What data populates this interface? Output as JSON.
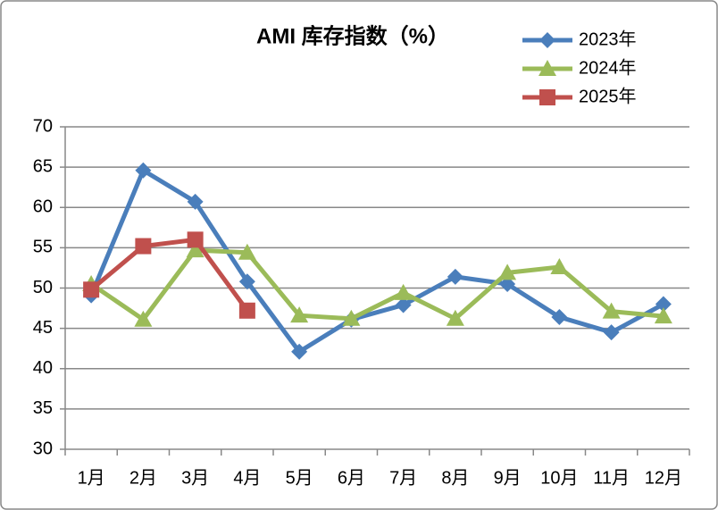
{
  "chart_data": {
    "type": "line",
    "title": "AMI 库存指数（%）",
    "categories": [
      "1月",
      "2月",
      "3月",
      "4月",
      "5月",
      "6月",
      "7月",
      "8月",
      "9月",
      "10月",
      "11月",
      "12月"
    ],
    "series": [
      {
        "name": "2023年",
        "color": "#4a7ebb",
        "marker": "diamond",
        "values": [
          49.1,
          64.6,
          60.7,
          50.8,
          42.1,
          46.1,
          47.9,
          51.4,
          50.5,
          46.4,
          44.5,
          48.0
        ]
      },
      {
        "name": "2024年",
        "color": "#9bbb59",
        "marker": "triangle",
        "values": [
          50.5,
          46.1,
          54.7,
          54.4,
          46.6,
          46.2,
          49.4,
          46.2,
          51.9,
          52.6,
          47.1,
          46.5
        ]
      },
      {
        "name": "2025年",
        "color": "#c0504d",
        "marker": "square",
        "values": [
          49.8,
          55.2,
          56.0,
          47.2,
          null,
          null,
          null,
          null,
          null,
          null,
          null,
          null
        ]
      }
    ],
    "ylim": [
      30,
      70
    ],
    "yticks": [
      30,
      35,
      40,
      45,
      50,
      55,
      60,
      65,
      70
    ],
    "grid": true,
    "legend": "top-right"
  }
}
